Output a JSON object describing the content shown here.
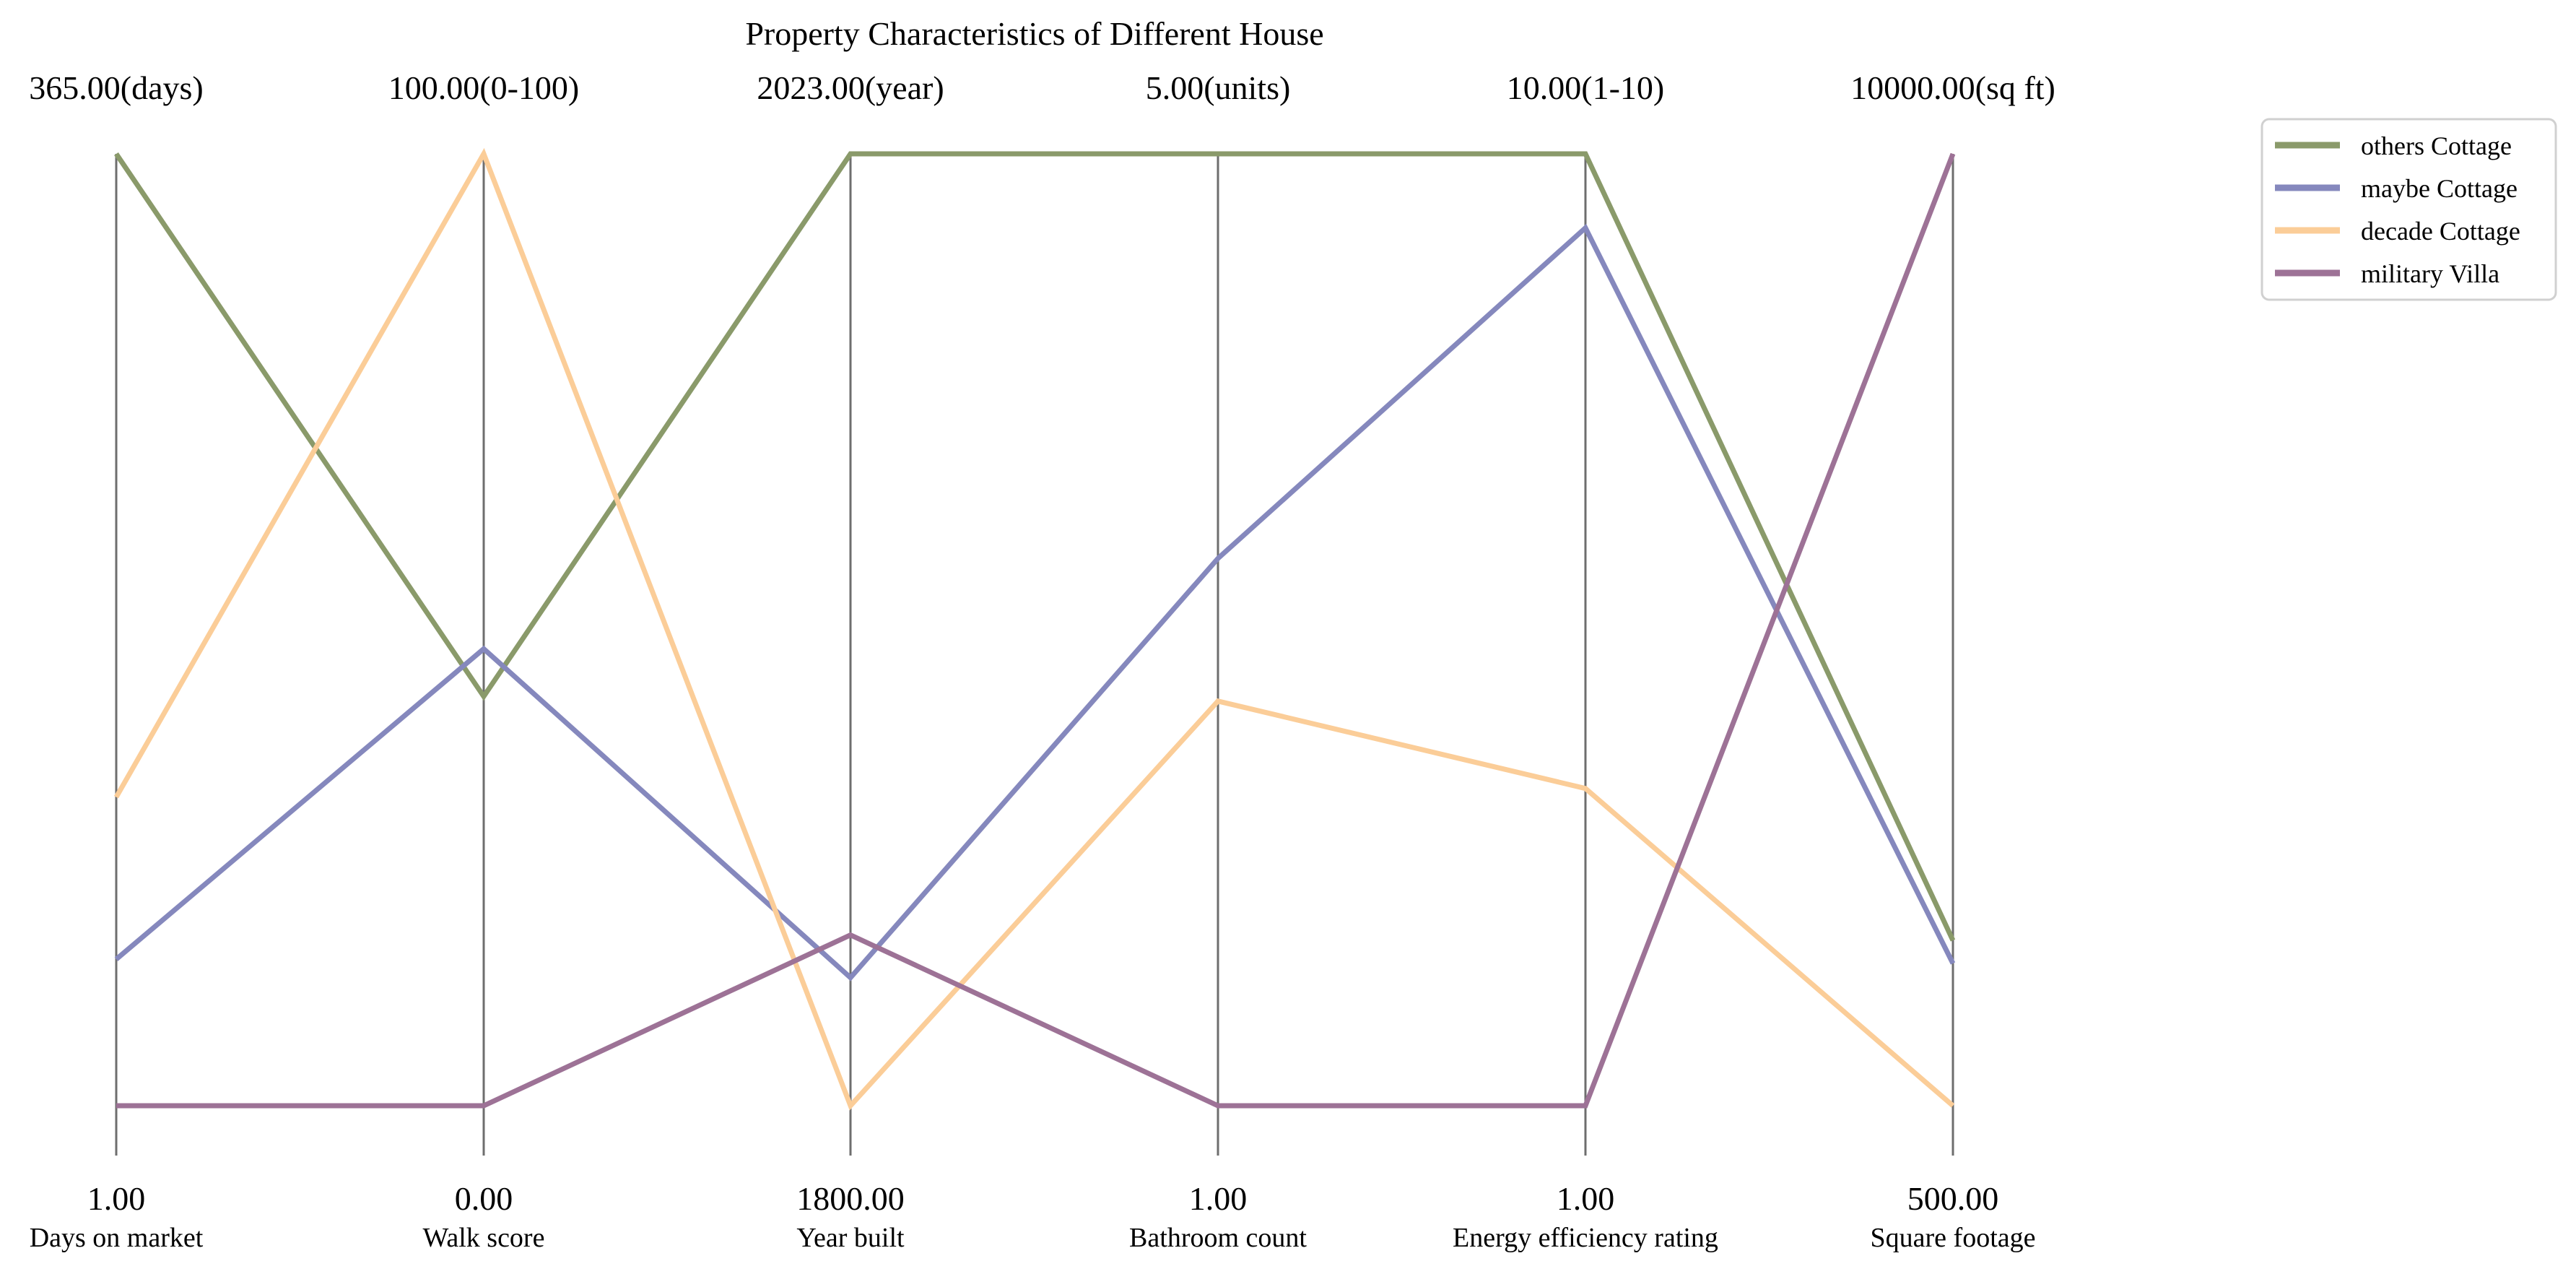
{
  "chart_data": {
    "type": "parallel_coordinates",
    "title": "Property Characteristics of Different House",
    "axes": [
      {
        "label": "Days on market",
        "min": 1,
        "max": 365,
        "min_label": "1.00",
        "max_label": "365.00(days)"
      },
      {
        "label": "Walk score",
        "min": 0,
        "max": 100,
        "min_label": "0.00",
        "max_label": "100.00(0-100)"
      },
      {
        "label": "Year built",
        "min": 1800,
        "max": 2023,
        "min_label": "1800.00",
        "max_label": "2023.00(year)"
      },
      {
        "label": "Bathroom count",
        "min": 1,
        "max": 5,
        "min_label": "1.00",
        "max_label": "5.00(units)"
      },
      {
        "label": "Energy efficiency rating",
        "min": 1,
        "max": 10,
        "min_label": "1.00",
        "max_label": "10.00(1-10)"
      },
      {
        "label": "Square footage",
        "min": 500,
        "max": 10000,
        "min_label": "500.00",
        "max_label": "10000.00(sq ft)"
      }
    ],
    "series": [
      {
        "name": "others Cottage",
        "color": "#8a9a6a",
        "values": [
          365,
          43,
          2023,
          5,
          10,
          2150
        ]
      },
      {
        "name": "maybe Cottage",
        "color": "#8588bd",
        "values": [
          57,
          48,
          1830,
          3.3,
          9.3,
          1920
        ]
      },
      {
        "name": "decade Cottage",
        "color": "#fbcd98",
        "values": [
          119,
          100,
          1800,
          2.7,
          4.0,
          500
        ]
      },
      {
        "name": "military Villa",
        "color": "#9d7296",
        "values": [
          1,
          0,
          1840,
          1,
          1,
          10000
        ]
      }
    ],
    "legend_position": "upper-right"
  }
}
